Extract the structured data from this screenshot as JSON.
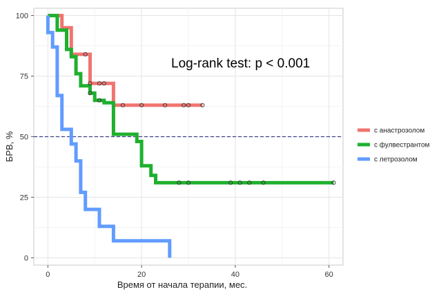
{
  "chart_data": {
    "type": "line",
    "subtype": "kaplan-meier",
    "xlabel": "Время от начала терапии, мес.",
    "ylabel": "БРВ, %",
    "xlim": [
      -3,
      63
    ],
    "ylim": [
      -3,
      103
    ],
    "x_ticks": [
      0,
      20,
      40,
      60
    ],
    "y_ticks": [
      0,
      25,
      50,
      75,
      100
    ],
    "grid": true,
    "legend_position": "right",
    "annotation": "Log-rank test: p < 0.001",
    "reference_line": {
      "y": 50,
      "style": "dashed",
      "color": "#3c3c8c"
    },
    "series": [
      {
        "name": "с анастрозолом",
        "color": "#f07470",
        "steps": [
          [
            0,
            100
          ],
          [
            3,
            100
          ],
          [
            3,
            95
          ],
          [
            5,
            95
          ],
          [
            5,
            84
          ],
          [
            9,
            84
          ],
          [
            9,
            72
          ],
          [
            14,
            72
          ],
          [
            14,
            63
          ],
          [
            33,
            63
          ]
        ],
        "censored": [
          [
            8,
            84
          ],
          [
            9,
            72
          ],
          [
            11,
            72
          ],
          [
            12,
            72
          ],
          [
            16,
            63
          ],
          [
            20,
            63
          ],
          [
            25,
            63
          ],
          [
            29,
            63
          ],
          [
            30,
            63
          ],
          [
            33,
            63
          ]
        ]
      },
      {
        "name": "с фулвестрантом",
        "color": "#1fb02e",
        "steps": [
          [
            0,
            100
          ],
          [
            2,
            100
          ],
          [
            2,
            94
          ],
          [
            4,
            94
          ],
          [
            4,
            86
          ],
          [
            5,
            86
          ],
          [
            5,
            83
          ],
          [
            6,
            83
          ],
          [
            6,
            76
          ],
          [
            7,
            76
          ],
          [
            7,
            71
          ],
          [
            9,
            71
          ],
          [
            9,
            68
          ],
          [
            10,
            68
          ],
          [
            10,
            65
          ],
          [
            12,
            65
          ],
          [
            12,
            64
          ],
          [
            14,
            64
          ],
          [
            14,
            51
          ],
          [
            19,
            51
          ],
          [
            19,
            48
          ],
          [
            20,
            48
          ],
          [
            20,
            38
          ],
          [
            22,
            38
          ],
          [
            22,
            34
          ],
          [
            23,
            34
          ],
          [
            23,
            31
          ],
          [
            61,
            31
          ]
        ],
        "censored": [
          [
            9,
            68
          ],
          [
            11,
            65
          ],
          [
            28,
            31
          ],
          [
            30,
            31
          ],
          [
            39,
            31
          ],
          [
            41,
            31
          ],
          [
            43,
            31
          ],
          [
            46,
            31
          ],
          [
            61,
            31
          ]
        ]
      },
      {
        "name": "с летрозолом",
        "color": "#619cff",
        "steps": [
          [
            0,
            100
          ],
          [
            0,
            93
          ],
          [
            1,
            93
          ],
          [
            1,
            87
          ],
          [
            2,
            87
          ],
          [
            2,
            67
          ],
          [
            3,
            67
          ],
          [
            3,
            53
          ],
          [
            5,
            53
          ],
          [
            5,
            47
          ],
          [
            6,
            47
          ],
          [
            6,
            40
          ],
          [
            7,
            40
          ],
          [
            7,
            27
          ],
          [
            8,
            27
          ],
          [
            8,
            20
          ],
          [
            11,
            20
          ],
          [
            11,
            13
          ],
          [
            14,
            13
          ],
          [
            14,
            7
          ],
          [
            26,
            7
          ],
          [
            26,
            0
          ]
        ],
        "censored": []
      }
    ]
  }
}
